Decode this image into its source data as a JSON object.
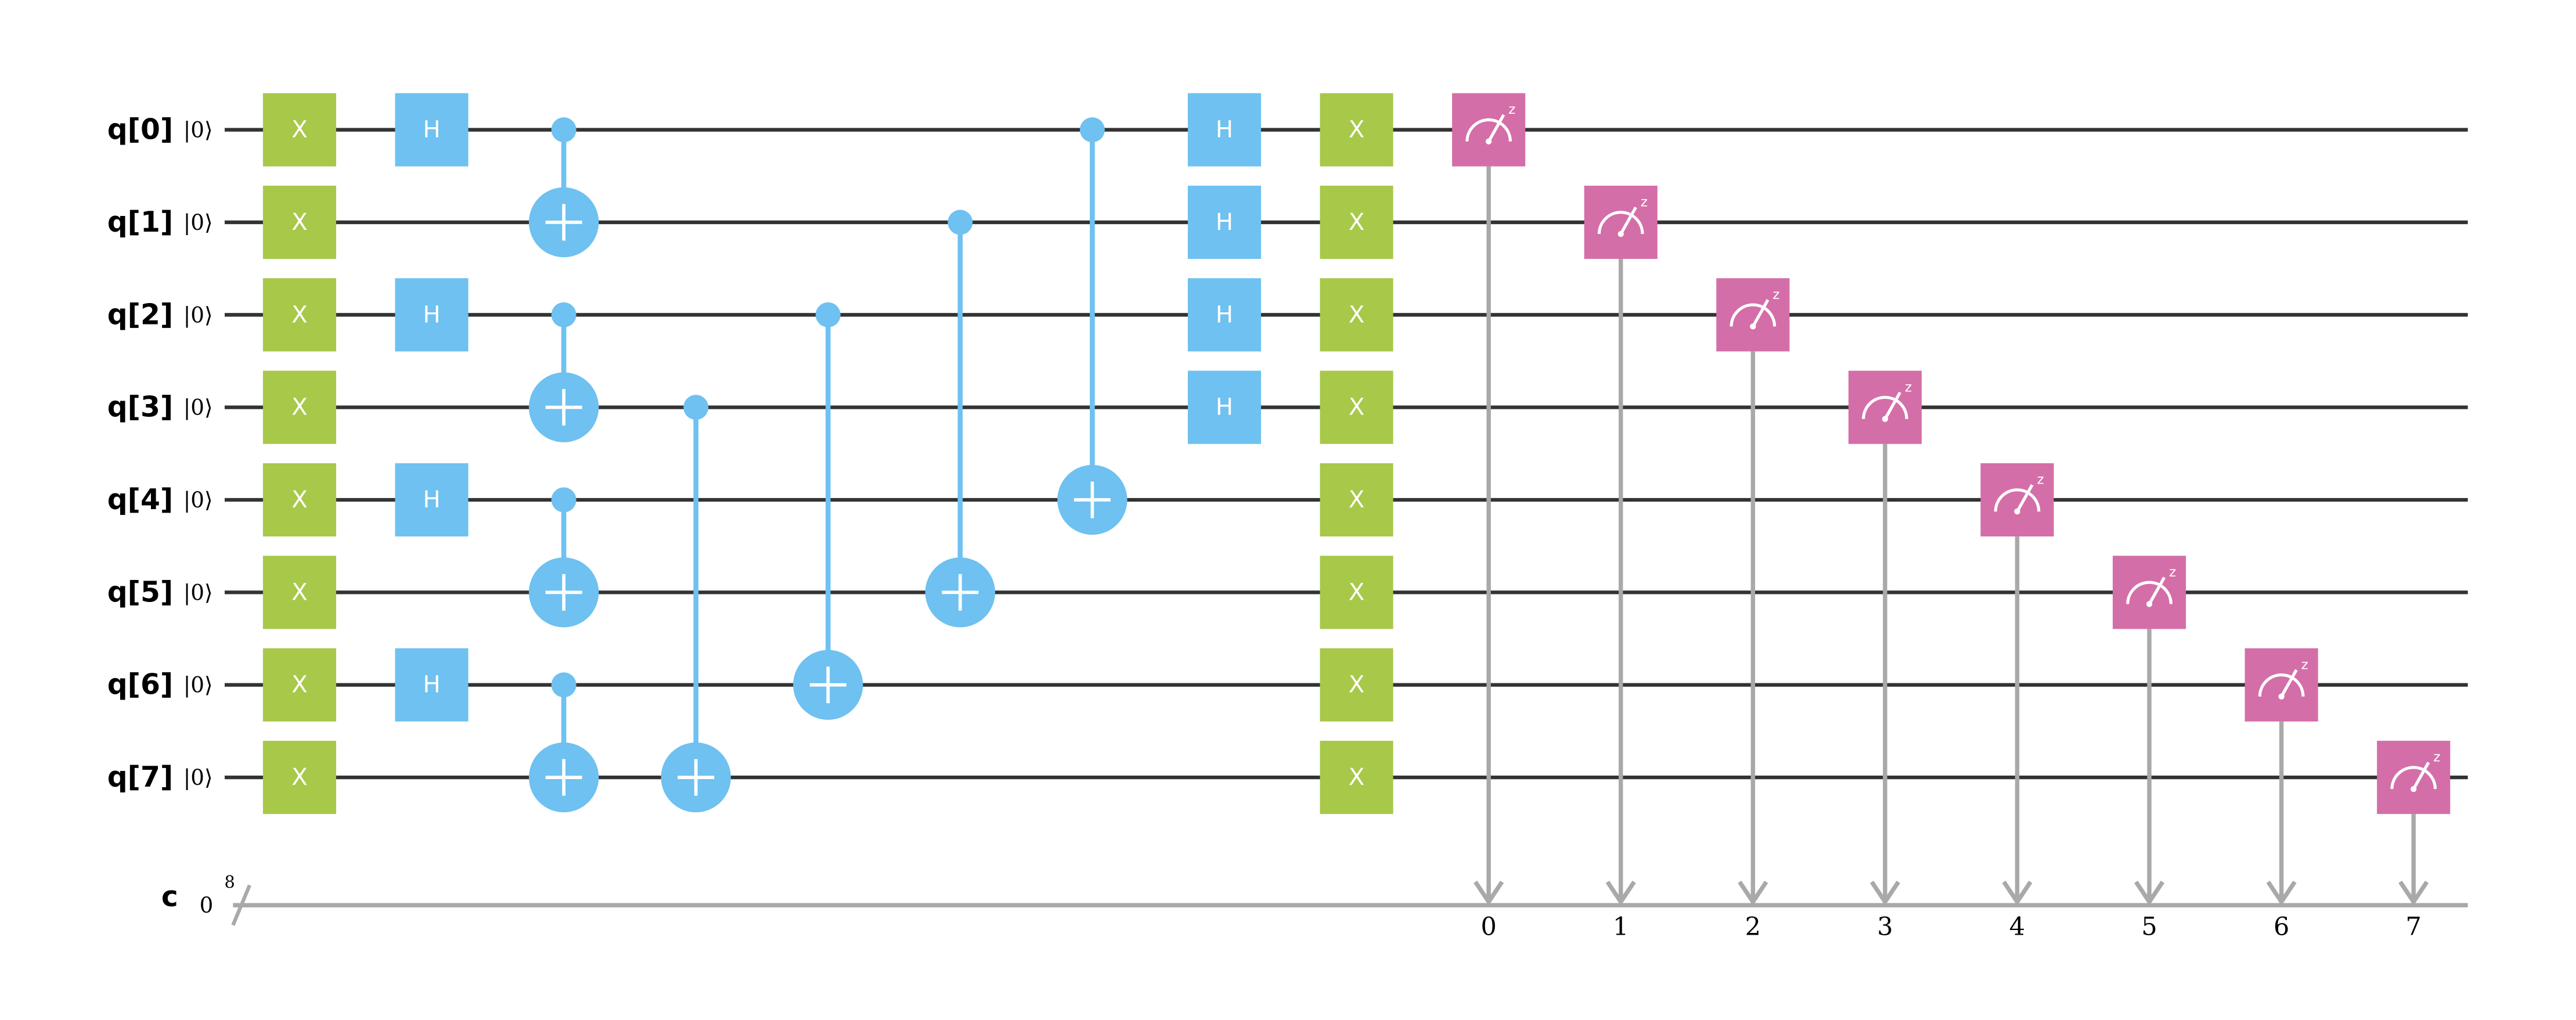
{
  "qubits": [
    {
      "label": "q[0]",
      "init": "|0⟩"
    },
    {
      "label": "q[1]",
      "init": "|0⟩"
    },
    {
      "label": "q[2]",
      "init": "|0⟩"
    },
    {
      "label": "q[3]",
      "init": "|0⟩"
    },
    {
      "label": "q[4]",
      "init": "|0⟩"
    },
    {
      "label": "q[5]",
      "init": "|0⟩"
    },
    {
      "label": "q[6]",
      "init": "|0⟩"
    },
    {
      "label": "q[7]",
      "init": "|0⟩"
    }
  ],
  "classical": {
    "label": "c",
    "init": "0",
    "width": "8"
  },
  "layers": [
    [
      {
        "type": "gate",
        "label": "X",
        "target": 0
      },
      {
        "type": "gate",
        "label": "X",
        "target": 1
      },
      {
        "type": "gate",
        "label": "X",
        "target": 2
      },
      {
        "type": "gate",
        "label": "X",
        "target": 3
      },
      {
        "type": "gate",
        "label": "X",
        "target": 4
      },
      {
        "type": "gate",
        "label": "X",
        "target": 5
      },
      {
        "type": "gate",
        "label": "X",
        "target": 6
      },
      {
        "type": "gate",
        "label": "X",
        "target": 7
      }
    ],
    [
      {
        "type": "gate",
        "label": "H",
        "target": 0
      },
      {
        "type": "gate",
        "label": "H",
        "target": 2
      },
      {
        "type": "gate",
        "label": "H",
        "target": 4
      },
      {
        "type": "gate",
        "label": "H",
        "target": 6
      }
    ],
    [
      {
        "type": "cx",
        "control": 0,
        "target": 1
      },
      {
        "type": "cx",
        "control": 2,
        "target": 3
      },
      {
        "type": "cx",
        "control": 4,
        "target": 5
      },
      {
        "type": "cx",
        "control": 6,
        "target": 7
      }
    ],
    [
      {
        "type": "cx",
        "control": 3,
        "target": 7
      }
    ],
    [
      {
        "type": "cx",
        "control": 2,
        "target": 6
      }
    ],
    [
      {
        "type": "cx",
        "control": 1,
        "target": 5
      }
    ],
    [
      {
        "type": "cx",
        "control": 0,
        "target": 4
      }
    ],
    [
      {
        "type": "gate",
        "label": "H",
        "target": 0
      },
      {
        "type": "gate",
        "label": "H",
        "target": 1
      },
      {
        "type": "gate",
        "label": "H",
        "target": 2
      },
      {
        "type": "gate",
        "label": "H",
        "target": 3
      }
    ],
    [
      {
        "type": "gate",
        "label": "X",
        "target": 0
      },
      {
        "type": "gate",
        "label": "X",
        "target": 1
      },
      {
        "type": "gate",
        "label": "X",
        "target": 2
      },
      {
        "type": "gate",
        "label": "X",
        "target": 3
      },
      {
        "type": "gate",
        "label": "X",
        "target": 4
      },
      {
        "type": "gate",
        "label": "X",
        "target": 5
      },
      {
        "type": "gate",
        "label": "X",
        "target": 6
      },
      {
        "type": "gate",
        "label": "X",
        "target": 7
      }
    ],
    [
      {
        "type": "measure",
        "target": 0,
        "clbit": "0",
        "basis": "z"
      }
    ],
    [
      {
        "type": "measure",
        "target": 1,
        "clbit": "1",
        "basis": "z"
      }
    ],
    [
      {
        "type": "measure",
        "target": 2,
        "clbit": "2",
        "basis": "z"
      }
    ],
    [
      {
        "type": "measure",
        "target": 3,
        "clbit": "3",
        "basis": "z"
      }
    ],
    [
      {
        "type": "measure",
        "target": 4,
        "clbit": "4",
        "basis": "z"
      }
    ],
    [
      {
        "type": "measure",
        "target": 5,
        "clbit": "5",
        "basis": "z"
      }
    ],
    [
      {
        "type": "measure",
        "target": 6,
        "clbit": "6",
        "basis": "z"
      }
    ],
    [
      {
        "type": "measure",
        "target": 7,
        "clbit": "7",
        "basis": "z"
      }
    ]
  ]
}
